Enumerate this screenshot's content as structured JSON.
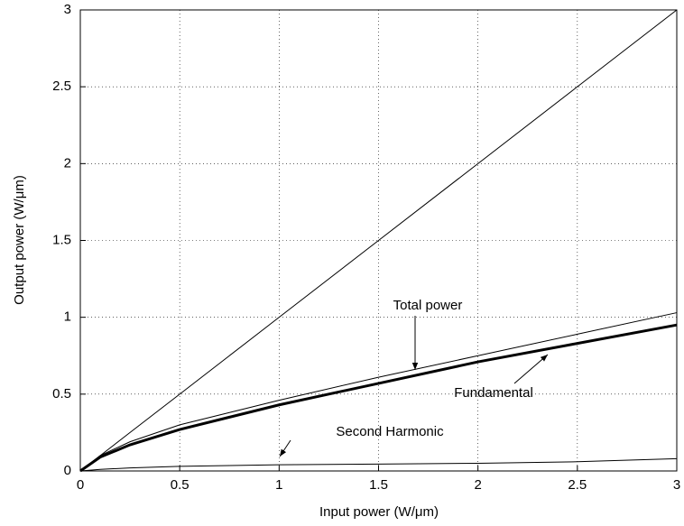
{
  "chart_data": {
    "type": "line",
    "xlabel": "Input power (W/μm)",
    "ylabel": "Output power (W/μm)",
    "x": [
      0,
      0.1,
      0.25,
      0.5,
      0.75,
      1,
      1.5,
      2,
      2.5,
      3
    ],
    "series": [
      {
        "color": "#000000",
        "values": [
          0,
          0.1,
          0.25,
          0.5,
          0.75,
          1,
          1.5,
          2,
          2.5,
          3
        ]
      },
      {
        "name": "Total power",
        "color": "#000000",
        "values": [
          0,
          0.1,
          0.19,
          0.3,
          0.38,
          0.46,
          0.61,
          0.75,
          0.89,
          1.03
        ]
      },
      {
        "name": "Fundamental",
        "color": "#000000",
        "values": [
          0,
          0.09,
          0.17,
          0.27,
          0.35,
          0.43,
          0.57,
          0.71,
          0.83,
          0.95
        ]
      },
      {
        "name": "Second Harmonic",
        "color": "#000000",
        "values": [
          0,
          0.01,
          0.02,
          0.03,
          0.035,
          0.04,
          0.045,
          0.05,
          0.06,
          0.08
        ]
      }
    ],
    "xlim": [
      0,
      3
    ],
    "ylim": [
      0,
      3
    ],
    "xticks": [
      0,
      0.5,
      1,
      1.5,
      2,
      2.5,
      3
    ],
    "yticks": [
      0,
      0.5,
      1,
      1.5,
      2,
      2.5,
      3
    ],
    "grid": true
  }
}
